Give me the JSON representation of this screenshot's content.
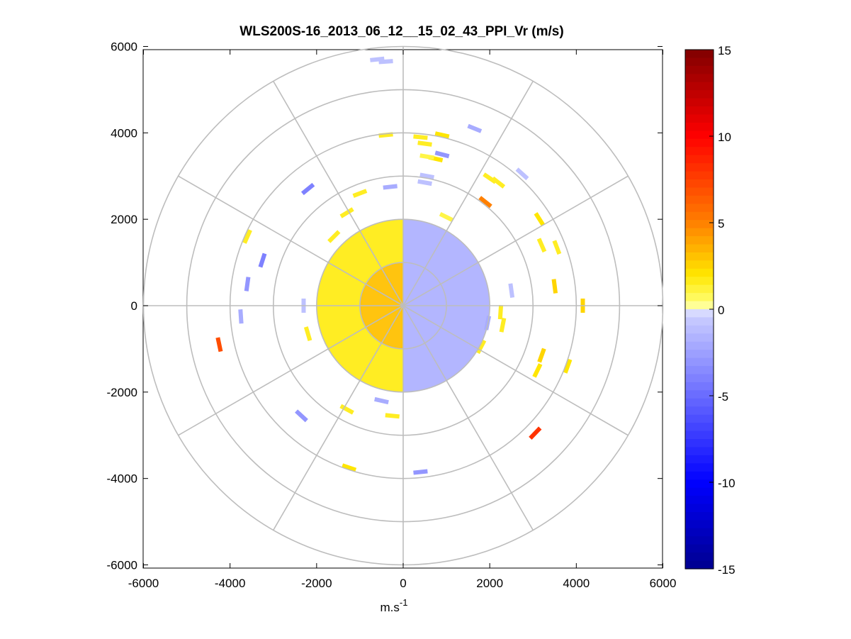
{
  "chart_data": {
    "type": "heatmap",
    "subtype": "polar-ppi",
    "title": "WLS200S-16_2013_06_12__15_02_43_PPI_Vr (m/s)",
    "xlabel": "m.s",
    "xlabel_sup": "-1",
    "ylabel": "",
    "xlim": [
      -6000,
      6000
    ],
    "ylim": [
      -6000,
      6000
    ],
    "xticks": [
      -6000,
      -4000,
      -2000,
      0,
      2000,
      4000,
      6000
    ],
    "yticks": [
      -6000,
      -4000,
      -2000,
      0,
      2000,
      4000,
      6000
    ],
    "range_rings": [
      1000,
      2000,
      3000,
      4000,
      5000,
      6000
    ],
    "radial_spokes_deg": [
      0,
      30,
      60,
      90,
      120,
      150,
      180,
      210,
      240,
      270,
      300,
      330
    ],
    "grid": true,
    "colorbar": {
      "min": -15,
      "max": 15,
      "ticks": [
        15,
        10,
        5,
        0,
        -5,
        -10,
        -15
      ],
      "colormap": "blue-white-yellow-red",
      "colors": [
        "#00008f",
        "#0000ff",
        "#ccd0ff",
        "#ffffff",
        "#ffff00",
        "#ff8000",
        "#ff0000",
        "#800000"
      ]
    },
    "central_field": {
      "radius_max": 2000,
      "west_half_vr": 1.5,
      "east_half_vr": -1.5,
      "inner_core_radius": 1000,
      "inner_core_vr": 4
    },
    "range_gates": [
      {
        "x": -600,
        "y": 5700,
        "vr": -1
      },
      {
        "x": -400,
        "y": 5650,
        "vr": -1
      },
      {
        "x": 400,
        "y": 3900,
        "vr": 1.5
      },
      {
        "x": 500,
        "y": 3750,
        "vr": 1.5
      },
      {
        "x": 900,
        "y": 3950,
        "vr": 2
      },
      {
        "x": 1650,
        "y": 4100,
        "vr": -2
      },
      {
        "x": 900,
        "y": 3500,
        "vr": -3
      },
      {
        "x": 750,
        "y": 3400,
        "vr": 2
      },
      {
        "x": 550,
        "y": 3450,
        "vr": 1
      },
      {
        "x": -400,
        "y": 3950,
        "vr": 1.5
      },
      {
        "x": 550,
        "y": 3000,
        "vr": -1
      },
      {
        "x": 500,
        "y": 2850,
        "vr": -1
      },
      {
        "x": -300,
        "y": 2750,
        "vr": -2
      },
      {
        "x": -1000,
        "y": 2600,
        "vr": 1.5
      },
      {
        "x": -2200,
        "y": 2700,
        "vr": -4
      },
      {
        "x": -3600,
        "y": 1600,
        "vr": 1.5
      },
      {
        "x": -3250,
        "y": 1050,
        "vr": -4
      },
      {
        "x": -3600,
        "y": 500,
        "vr": -3
      },
      {
        "x": -3750,
        "y": -250,
        "vr": -2
      },
      {
        "x": -4250,
        "y": -900,
        "vr": 7
      },
      {
        "x": -2350,
        "y": -2550,
        "vr": -3
      },
      {
        "x": -1300,
        "y": -2400,
        "vr": 1.5
      },
      {
        "x": -500,
        "y": -2200,
        "vr": -2
      },
      {
        "x": -250,
        "y": -2550,
        "vr": 1.5
      },
      {
        "x": -1250,
        "y": -3750,
        "vr": 2
      },
      {
        "x": 400,
        "y": -3850,
        "vr": -3
      },
      {
        "x": 3050,
        "y": -2950,
        "vr": 8
      },
      {
        "x": 3200,
        "y": -1150,
        "vr": 2.5
      },
      {
        "x": 3100,
        "y": -1500,
        "vr": 2
      },
      {
        "x": 3800,
        "y": -1400,
        "vr": 2
      },
      {
        "x": 2300,
        "y": -450,
        "vr": 1.5
      },
      {
        "x": 2250,
        "y": -150,
        "vr": 1.5
      },
      {
        "x": 2500,
        "y": 350,
        "vr": -1
      },
      {
        "x": 3500,
        "y": 450,
        "vr": 2.5
      },
      {
        "x": 4150,
        "y": 0,
        "vr": 2.5
      },
      {
        "x": 3550,
        "y": 1350,
        "vr": 1.5
      },
      {
        "x": 3200,
        "y": 1400,
        "vr": 1.5
      },
      {
        "x": 3150,
        "y": 2000,
        "vr": 2
      },
      {
        "x": 1900,
        "y": 2400,
        "vr": 5
      },
      {
        "x": 2200,
        "y": 2850,
        "vr": 1.5
      },
      {
        "x": 2750,
        "y": 3050,
        "vr": -1
      },
      {
        "x": 2000,
        "y": 2950,
        "vr": 1.5
      },
      {
        "x": 1000,
        "y": 2050,
        "vr": 1
      },
      {
        "x": -1300,
        "y": 2150,
        "vr": 1.5
      },
      {
        "x": -1600,
        "y": 1600,
        "vr": 1.5
      },
      {
        "x": -2300,
        "y": 0,
        "vr": -1
      },
      {
        "x": -2200,
        "y": -650,
        "vr": 1.5
      },
      {
        "x": 1800,
        "y": -950,
        "vr": 1.5
      },
      {
        "x": 1950,
        "y": -400,
        "vr": -2
      }
    ]
  }
}
